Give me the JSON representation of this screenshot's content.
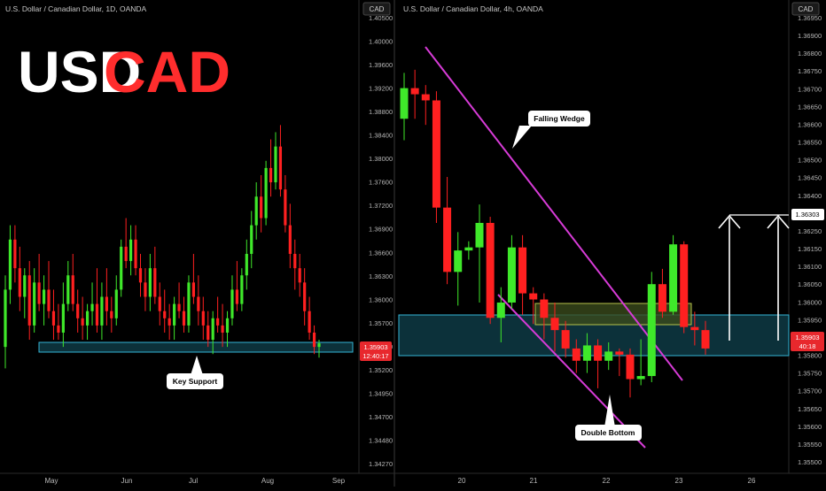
{
  "brand": {
    "title_left": "USD",
    "title_right": "CAD",
    "color_left": "#ffffff",
    "color_right": "#ff2d2d"
  },
  "colors": {
    "bull": "#3fe82a",
    "bear": "#ff2020",
    "wedge": "#d63bd6",
    "support_fill": "#0e3a44",
    "support_stroke": "#33b5d6",
    "ob_fill": "#3a4a1c",
    "ob_stroke": "#b6c24a",
    "axis_text": "#b8b8b8",
    "price_label_bg": "#e8282d"
  },
  "chart_data": [
    {
      "type": "candlestick",
      "title": "U.S. Dollar / Canadian Dollar, 1D, OANDA",
      "currency_badge": "CAD",
      "y_ticks": [
        "1.40500",
        "1.40000",
        "1.39600",
        "1.39200",
        "1.38800",
        "1.38400",
        "1.38000",
        "1.37600",
        "1.37200",
        "1.36900",
        "1.36600",
        "1.36300",
        "1.36000",
        "1.35700",
        "1.35450",
        "1.35200",
        "1.34950",
        "1.34700",
        "1.34480",
        "1.34270"
      ],
      "x_ticks": [
        "May",
        "Jun",
        "Jul",
        "Aug",
        "Sep"
      ],
      "last_price": "1.35903",
      "countdown": "12:40:17",
      "annotations": [
        "Key Support"
      ],
      "support_zone": [
        1.3587,
        1.3597
      ],
      "candles": [
        [
          1.359,
          1.369,
          1.356,
          1.367
        ],
        [
          1.367,
          1.376,
          1.365,
          1.374
        ],
        [
          1.374,
          1.376,
          1.368,
          1.37
        ],
        [
          1.37,
          1.373,
          1.364,
          1.366
        ],
        [
          1.366,
          1.37,
          1.363,
          1.369
        ],
        [
          1.369,
          1.371,
          1.36,
          1.362
        ],
        [
          1.362,
          1.37,
          1.361,
          1.368
        ],
        [
          1.368,
          1.372,
          1.364,
          1.365
        ],
        [
          1.365,
          1.369,
          1.362,
          1.367
        ],
        [
          1.367,
          1.371,
          1.363,
          1.364
        ],
        [
          1.364,
          1.367,
          1.36,
          1.362
        ],
        [
          1.362,
          1.365,
          1.36,
          1.361
        ],
        [
          1.361,
          1.368,
          1.359,
          1.365
        ],
        [
          1.365,
          1.371,
          1.364,
          1.369
        ],
        [
          1.369,
          1.372,
          1.364,
          1.365
        ],
        [
          1.365,
          1.367,
          1.361,
          1.363
        ],
        [
          1.363,
          1.366,
          1.36,
          1.362
        ],
        [
          1.362,
          1.365,
          1.36,
          1.364
        ],
        [
          1.364,
          1.368,
          1.362,
          1.365
        ],
        [
          1.365,
          1.37,
          1.361,
          1.362
        ],
        [
          1.362,
          1.368,
          1.36,
          1.366
        ],
        [
          1.366,
          1.37,
          1.362,
          1.364
        ],
        [
          1.364,
          1.366,
          1.361,
          1.363
        ],
        [
          1.363,
          1.369,
          1.362,
          1.367
        ],
        [
          1.367,
          1.374,
          1.366,
          1.373
        ],
        [
          1.373,
          1.377,
          1.37,
          1.371
        ],
        [
          1.371,
          1.376,
          1.369,
          1.374
        ],
        [
          1.374,
          1.376,
          1.369,
          1.37
        ],
        [
          1.37,
          1.372,
          1.366,
          1.368
        ],
        [
          1.368,
          1.37,
          1.364,
          1.366
        ],
        [
          1.366,
          1.372,
          1.364,
          1.37
        ],
        [
          1.37,
          1.373,
          1.365,
          1.366
        ],
        [
          1.366,
          1.368,
          1.362,
          1.364
        ],
        [
          1.364,
          1.367,
          1.361,
          1.363
        ],
        [
          1.363,
          1.365,
          1.36,
          1.362
        ],
        [
          1.362,
          1.366,
          1.36,
          1.365
        ],
        [
          1.365,
          1.368,
          1.363,
          1.364
        ],
        [
          1.364,
          1.366,
          1.361,
          1.362
        ],
        [
          1.362,
          1.369,
          1.361,
          1.368
        ],
        [
          1.368,
          1.372,
          1.365,
          1.366
        ],
        [
          1.366,
          1.369,
          1.362,
          1.364
        ],
        [
          1.364,
          1.366,
          1.36,
          1.362
        ],
        [
          1.362,
          1.364,
          1.359,
          1.36
        ],
        [
          1.36,
          1.364,
          1.358,
          1.363
        ],
        [
          1.363,
          1.366,
          1.361,
          1.362
        ],
        [
          1.362,
          1.365,
          1.359,
          1.361
        ],
        [
          1.361,
          1.364,
          1.359,
          1.363
        ],
        [
          1.363,
          1.369,
          1.362,
          1.367
        ],
        [
          1.367,
          1.371,
          1.364,
          1.365
        ],
        [
          1.365,
          1.37,
          1.364,
          1.369
        ],
        [
          1.369,
          1.374,
          1.367,
          1.372
        ],
        [
          1.372,
          1.378,
          1.37,
          1.376
        ],
        [
          1.376,
          1.382,
          1.374,
          1.38
        ],
        [
          1.38,
          1.383,
          1.375,
          1.377
        ],
        [
          1.377,
          1.385,
          1.376,
          1.384
        ],
        [
          1.384,
          1.388,
          1.38,
          1.382
        ],
        [
          1.382,
          1.389,
          1.381,
          1.387
        ],
        [
          1.387,
          1.39,
          1.38,
          1.381
        ],
        [
          1.381,
          1.383,
          1.375,
          1.376
        ],
        [
          1.376,
          1.379,
          1.37,
          1.372
        ],
        [
          1.372,
          1.374,
          1.367,
          1.37
        ],
        [
          1.37,
          1.372,
          1.366,
          1.368
        ],
        [
          1.368,
          1.37,
          1.362,
          1.364
        ],
        [
          1.364,
          1.366,
          1.36,
          1.361
        ],
        [
          1.361,
          1.362,
          1.358,
          1.359
        ],
        [
          1.359,
          1.36,
          1.3575,
          1.3595
        ]
      ]
    },
    {
      "type": "candlestick",
      "title": "U.S. Dollar / Canadian Dollar, 4h, OANDA",
      "currency_badge": "CAD",
      "y_ticks": [
        "1.36950",
        "1.36900",
        "1.36800",
        "1.36750",
        "1.36700",
        "1.36650",
        "1.36600",
        "1.36550",
        "1.36500",
        "1.36450",
        "1.36400",
        "1.36350",
        "1.36250",
        "1.36150",
        "1.36100",
        "1.36050",
        "1.36000",
        "1.35950",
        "1.35850",
        "1.35800",
        "1.35750",
        "1.35700",
        "1.35650",
        "1.35600",
        "1.35550",
        "1.35500"
      ],
      "x_ticks": [
        "20",
        "21",
        "22",
        "23",
        "26"
      ],
      "last_price": "1.35903",
      "countdown": "40:18",
      "target_price": "1.36303",
      "annotations": [
        "Falling Wedge",
        "Double Bottom"
      ],
      "support_zone": [
        1.3585,
        1.3597
      ],
      "order_block_zone": [
        1.3593,
        1.3601
      ],
      "candles": [
        [
          1.3662,
          1.3677,
          1.3655,
          1.3672
        ],
        [
          1.3672,
          1.3678,
          1.3662,
          1.367
        ],
        [
          1.367,
          1.3673,
          1.366,
          1.3668
        ],
        [
          1.3668,
          1.3671,
          1.3628,
          1.3633
        ],
        [
          1.3633,
          1.3643,
          1.3608,
          1.3612
        ],
        [
          1.3612,
          1.3625,
          1.3601,
          1.3619
        ],
        [
          1.3619,
          1.3622,
          1.3616,
          1.362
        ],
        [
          1.362,
          1.3634,
          1.3602,
          1.3628
        ],
        [
          1.3628,
          1.363,
          1.3595,
          1.3597
        ],
        [
          1.3597,
          1.3607,
          1.3589,
          1.3602
        ],
        [
          1.3602,
          1.3624,
          1.36,
          1.362
        ],
        [
          1.362,
          1.3624,
          1.3598,
          1.3605
        ],
        [
          1.3605,
          1.3607,
          1.3595,
          1.3603
        ],
        [
          1.3603,
          1.3605,
          1.359,
          1.3597
        ],
        [
          1.3597,
          1.3602,
          1.3586,
          1.3593
        ],
        [
          1.3593,
          1.3596,
          1.3584,
          1.3587
        ],
        [
          1.3587,
          1.359,
          1.3579,
          1.3583
        ],
        [
          1.3583,
          1.3592,
          1.3579,
          1.3588
        ],
        [
          1.3588,
          1.359,
          1.3574,
          1.3583
        ],
        [
          1.3583,
          1.3589,
          1.358,
          1.3586
        ],
        [
          1.3586,
          1.3587,
          1.3578,
          1.3585
        ],
        [
          1.3585,
          1.3587,
          1.3571,
          1.3577
        ],
        [
          1.3577,
          1.359,
          1.3575,
          1.3578
        ],
        [
          1.3578,
          1.3612,
          1.3576,
          1.3608
        ],
        [
          1.3608,
          1.3613,
          1.3597,
          1.3599
        ],
        [
          1.3599,
          1.3624,
          1.3598,
          1.3621
        ],
        [
          1.3621,
          1.3622,
          1.3592,
          1.3594
        ],
        [
          1.3594,
          1.3599,
          1.3588,
          1.3593
        ],
        [
          1.3593,
          1.3596,
          1.3585,
          1.3587
        ]
      ]
    }
  ]
}
